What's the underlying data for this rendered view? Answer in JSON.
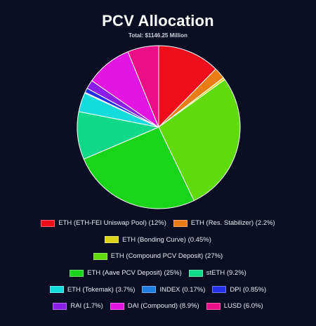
{
  "chart_data": {
    "type": "pie",
    "title": "PCV Allocation",
    "subtitle": "Total: $1146.25 Million",
    "legend_position": "bottom",
    "slices": [
      {
        "label": "ETH (ETH-FEI Uniswap Pool) (12%)",
        "value": 12,
        "color": "#ee0d1b"
      },
      {
        "label": "ETH (Res. Stabilizer) (2.2%)",
        "value": 2.2,
        "color": "#ea7c14"
      },
      {
        "label": "ETH (Bonding Curve) (0.45%)",
        "value": 0.45,
        "color": "#e0d41a"
      },
      {
        "label": "ETH (Compound PCV Deposit) (27%)",
        "value": 27,
        "color": "#5fdb0c"
      },
      {
        "label": "ETH (Aave PCV Deposit) (25%)",
        "value": 25,
        "color": "#19d419"
      },
      {
        "label": "stETH (9.2%)",
        "value": 9.2,
        "color": "#12d98a"
      },
      {
        "label": "ETH (Tokemak) (3.7%)",
        "value": 3.7,
        "color": "#14dcdc"
      },
      {
        "label": "INDEX (0.17%)",
        "value": 0.17,
        "color": "#1e7fe0"
      },
      {
        "label": "DPI (0.85%)",
        "value": 0.85,
        "color": "#2430e6"
      },
      {
        "label": "RAI (1.7%)",
        "value": 1.7,
        "color": "#8a1ee8"
      },
      {
        "label": "DAI (Compound) (8.9%)",
        "value": 8.9,
        "color": "#e315e0"
      },
      {
        "label": "LUSD (6.0%)",
        "value": 6.0,
        "color": "#ea0f86"
      }
    ],
    "legend_rows": [
      [
        0,
        1
      ],
      [
        2
      ],
      [
        3
      ],
      [
        4,
        5
      ],
      [
        6,
        7,
        8
      ],
      [
        9,
        10,
        11
      ]
    ]
  }
}
